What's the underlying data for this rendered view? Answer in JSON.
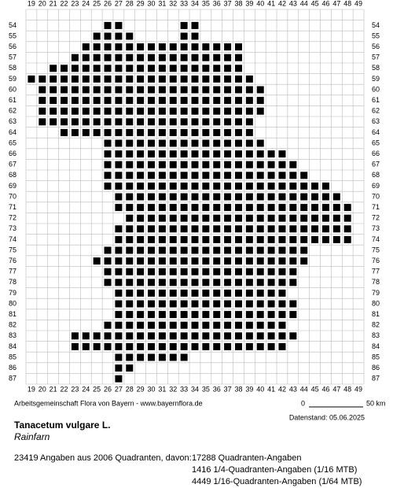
{
  "map": {
    "columns": [
      19,
      20,
      21,
      22,
      23,
      24,
      25,
      26,
      27,
      28,
      29,
      30,
      31,
      32,
      33,
      34,
      35,
      36,
      37,
      38,
      39,
      40,
      41,
      42,
      43,
      44,
      45,
      46,
      47,
      48,
      49
    ],
    "rows": [
      54,
      55,
      56,
      57,
      58,
      59,
      60,
      61,
      62,
      63,
      64,
      65,
      66,
      67,
      68,
      69,
      70,
      71,
      72,
      73,
      74,
      75,
      76,
      77,
      78,
      79,
      80,
      81,
      82,
      83,
      84,
      85,
      86,
      87
    ],
    "cells": [
      [
        54,
        26,
        27
      ],
      [
        54,
        33,
        34
      ],
      [
        55,
        25,
        28
      ],
      [
        55,
        33,
        34
      ],
      [
        56,
        24,
        38
      ],
      [
        57,
        23,
        38
      ],
      [
        58,
        21,
        38
      ],
      [
        59,
        19,
        39
      ],
      [
        60,
        20,
        40
      ],
      [
        61,
        20,
        40
      ],
      [
        62,
        20,
        40
      ],
      [
        63,
        20,
        39
      ],
      [
        64,
        22,
        39
      ],
      [
        65,
        26,
        40
      ],
      [
        66,
        26,
        42
      ],
      [
        67,
        26,
        43
      ],
      [
        68,
        26,
        44
      ],
      [
        69,
        26,
        46
      ],
      [
        70,
        27,
        47
      ],
      [
        71,
        27,
        48
      ],
      [
        72,
        28,
        48
      ],
      [
        73,
        27,
        48
      ],
      [
        74,
        27,
        48
      ],
      [
        75,
        26,
        44
      ],
      [
        76,
        25,
        44
      ],
      [
        77,
        26,
        43
      ],
      [
        78,
        26,
        43
      ],
      [
        79,
        27,
        42
      ],
      [
        80,
        27,
        43
      ],
      [
        81,
        27,
        43
      ],
      [
        82,
        26,
        42
      ],
      [
        83,
        23,
        43
      ],
      [
        84,
        23,
        42
      ],
      [
        85,
        27,
        33
      ],
      [
        86,
        27,
        28
      ],
      [
        87,
        27,
        27
      ]
    ],
    "credit": "Arbeitsgemeinschaft Flora von Bayern - www.bayernflora.de",
    "scale_start": "0",
    "scale_end": "50 km",
    "date": "Datenstand: 05.06.2025"
  },
  "species": {
    "name": "Tanacetum vulgare L.",
    "common_name": "Rainfarn"
  },
  "stats": {
    "summary": "23419 Angaben aus 2006 Quadranten, davon:",
    "lines": [
      "17288 Quadranten-Angaben",
      "1416 1/4-Quadranten-Angaben (1/16 MTB)",
      "4449 1/16-Quadranten-Angaben (1/64 MTB)"
    ]
  }
}
